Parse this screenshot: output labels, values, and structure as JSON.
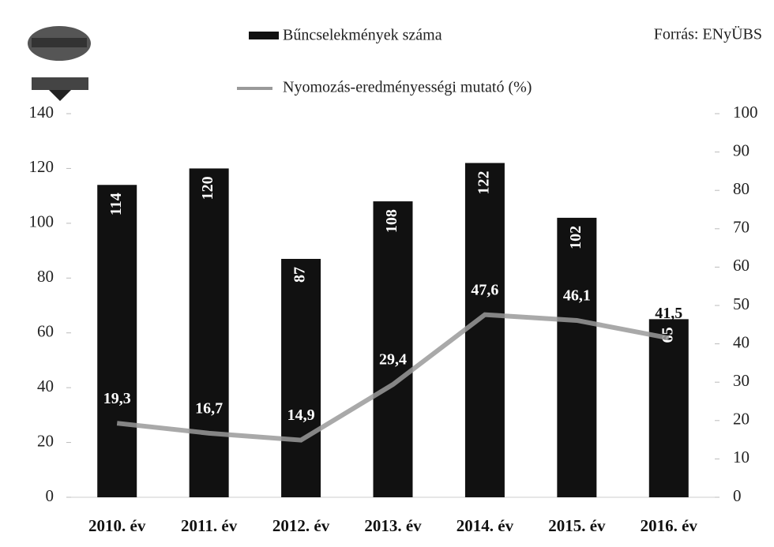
{
  "chart_data": {
    "type": "bar-line",
    "categories": [
      "2010. év",
      "2011. év",
      "2012. év",
      "2013. év",
      "2014. év",
      "2015. év",
      "2016. év"
    ],
    "series": [
      {
        "name": "Bűncselekmények száma",
        "color": "#111111",
        "axis": "y",
        "values": [
          114,
          120,
          87,
          108,
          122,
          102,
          65
        ]
      },
      {
        "name": "Nyomozás-eredményességi mutató (%)",
        "color": "#9a9a9a",
        "axis": "y2",
        "values": [
          19.3,
          16.7,
          14.9,
          29.4,
          47.6,
          46.1,
          41.5
        ],
        "value_labels": [
          "19,3",
          "16,7",
          "14,9",
          "29,4",
          "47,6",
          "46,1",
          "41,5"
        ]
      }
    ],
    "ylim": [
      0,
      140
    ],
    "yticks": [
      0,
      20,
      40,
      60,
      80,
      100,
      120,
      140
    ],
    "y2lim": [
      0,
      100
    ],
    "y2ticks": [
      0,
      10,
      20,
      30,
      40,
      50,
      60,
      70,
      80,
      90,
      100
    ],
    "source": "Forrás: ENyÜBS"
  }
}
